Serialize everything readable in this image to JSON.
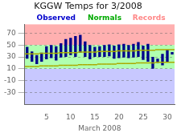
{
  "chart_data": {
    "type": "bar",
    "title": "KGGW Temps for 3/2008",
    "x_label": "March 2008",
    "x": [
      1,
      2,
      3,
      4,
      5,
      6,
      7,
      8,
      9,
      10,
      11,
      12,
      13,
      14,
      15,
      16,
      17,
      18,
      19,
      20,
      21,
      22,
      23,
      24,
      25,
      26,
      27,
      28,
      29,
      30,
      31
    ],
    "series": [
      {
        "type": "bar",
        "color": "#00008b",
        "low": [
          27,
          22,
          18,
          22,
          26,
          28,
          24,
          29,
          30,
          33,
          30,
          37,
          30,
          26,
          30,
          30,
          30,
          31,
          27,
          28,
          29,
          28,
          29,
          30,
          25,
          22,
          10,
          20,
          16,
          22,
          34
        ],
        "high": [
          47,
          39,
          33,
          37,
          48,
          50,
          48,
          53,
          60,
          62,
          65,
          67,
          56,
          50,
          47,
          48,
          50,
          51,
          49,
          51,
          52,
          50,
          52,
          55,
          49,
          52,
          30,
          27,
          35,
          42,
          38
        ]
      },
      {
        "type": "scatter",
        "marker": "line",
        "color": "#aaaa00",
        "low": [
          14,
          14,
          14,
          15,
          15,
          15,
          15,
          16,
          16,
          16,
          16,
          17,
          17,
          17,
          17,
          18,
          18,
          18,
          18,
          19,
          19,
          19,
          19,
          20,
          20,
          20,
          20,
          21,
          21,
          21,
          21
        ],
        "high": [
          35,
          35,
          35,
          36,
          36,
          36,
          36,
          37,
          37,
          37,
          37,
          38,
          38,
          38,
          38,
          39,
          39,
          39,
          39,
          40,
          40,
          40,
          40,
          41,
          41,
          41,
          41,
          42,
          42,
          42,
          42
        ]
      }
    ],
    "bands": [
      {
        "from": 50,
        "to": 85,
        "color": "#ffb0b0"
      },
      {
        "from": 10,
        "to": 50,
        "color": "#b0ffb0"
      },
      {
        "from": -50,
        "to": 10,
        "color": "#c8c8ff"
      }
    ],
    "annotations": [
      {
        "text": "Observed",
        "color": "#0000cc"
      },
      {
        "text": "Normals",
        "color": "#00aa00"
      },
      {
        "text": "Records",
        "color": "#ff8888"
      }
    ],
    "xlim": [
      0.5,
      31.5
    ],
    "xticks": [
      5,
      10,
      15,
      20,
      25,
      30
    ],
    "ylim": [
      -50,
      85
    ],
    "yticks": [
      -30,
      -10,
      10,
      30,
      50,
      70
    ],
    "grid": true
  }
}
